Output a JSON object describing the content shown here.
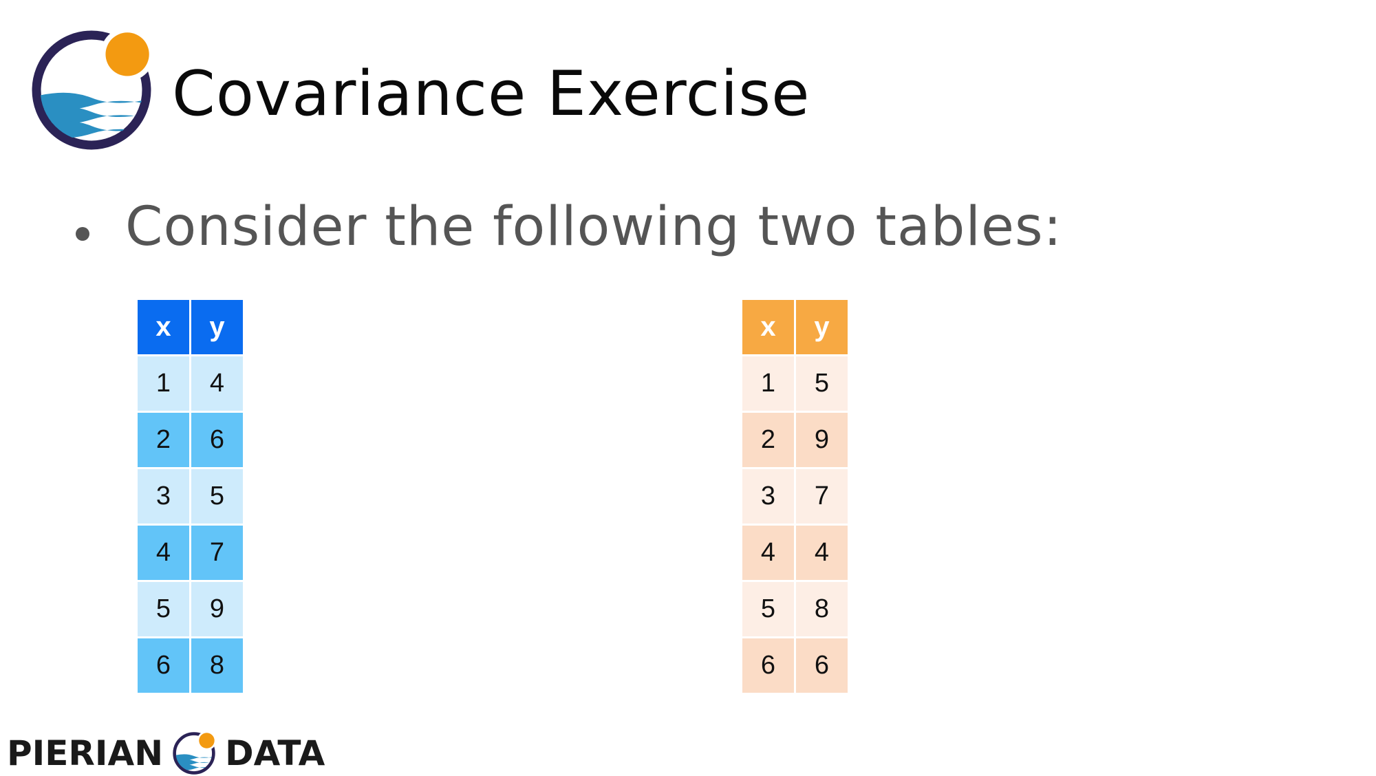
{
  "title": "Covariance Exercise",
  "bullet": "Consider the following two tables:",
  "table_blue": {
    "headers": [
      "x",
      "y"
    ],
    "rows": [
      [
        "1",
        "4"
      ],
      [
        "2",
        "6"
      ],
      [
        "3",
        "5"
      ],
      [
        "4",
        "7"
      ],
      [
        "5",
        "9"
      ],
      [
        "6",
        "8"
      ]
    ]
  },
  "table_orange": {
    "headers": [
      "x",
      "y"
    ],
    "rows": [
      [
        "1",
        "5"
      ],
      [
        "2",
        "9"
      ],
      [
        "3",
        "7"
      ],
      [
        "4",
        "4"
      ],
      [
        "5",
        "8"
      ],
      [
        "6",
        "6"
      ]
    ]
  },
  "footer": {
    "left_text": "PIERIAN",
    "right_text": "DATA"
  },
  "colors": {
    "logo_ring": "#2b2356",
    "logo_sun": "#f39a11",
    "logo_wave": "#2a8fc2",
    "blue_header": "#0a6cf0",
    "blue_odd": "#62c4f8",
    "blue_even": "#ceebfc",
    "orange_header": "#f7a943",
    "orange_odd": "#fbdcc6",
    "orange_even": "#fdeee5"
  }
}
